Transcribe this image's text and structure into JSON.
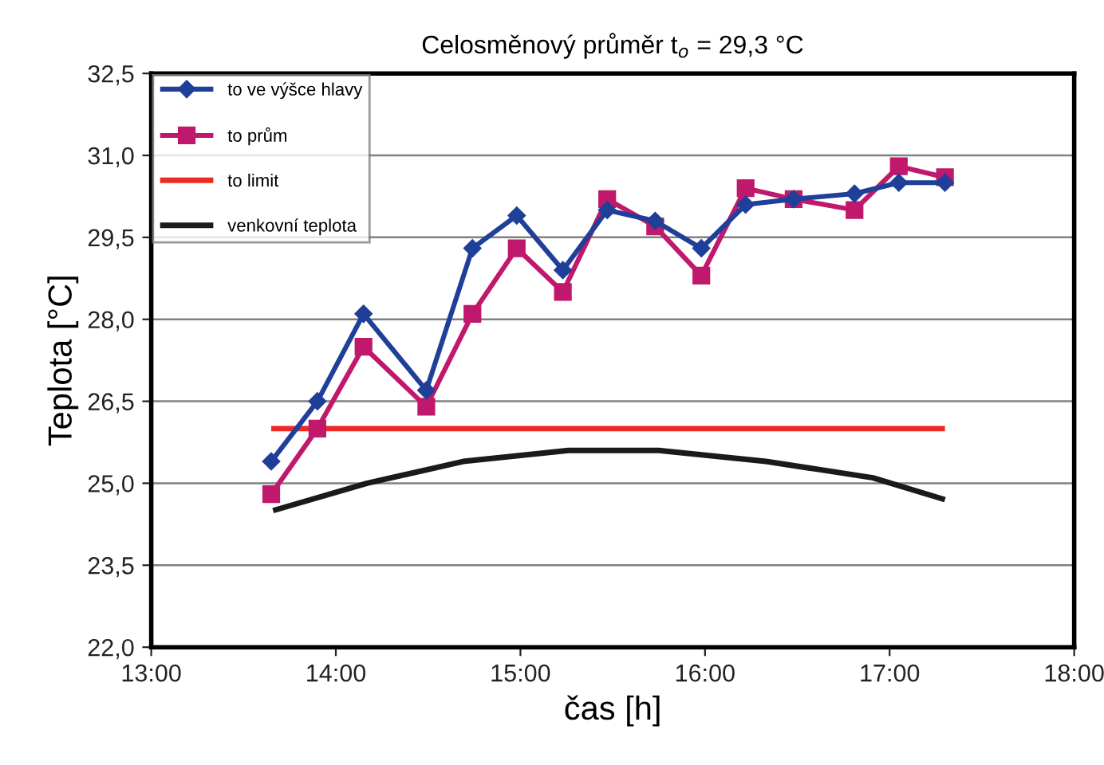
{
  "chart_data": {
    "type": "line",
    "title": "Celosměnový průměr t$_{o}$ = 29,3 °C",
    "xlabel": "čas [h]",
    "ylabel": "Teplota [°C]",
    "xlim": [
      13,
      18
    ],
    "xticks": [
      {
        "value": 13,
        "label": "13:00"
      },
      {
        "value": 14,
        "label": "14:00"
      },
      {
        "value": 15,
        "label": "15:00"
      },
      {
        "value": 16,
        "label": "16:00"
      },
      {
        "value": 17,
        "label": "17:00"
      },
      {
        "value": 18,
        "label": "18:00"
      }
    ],
    "ylim": [
      22,
      32.5
    ],
    "yticks": [
      {
        "value": 22,
        "label": "22,0"
      },
      {
        "value": 23.5,
        "label": "23,5"
      },
      {
        "value": 25,
        "label": "25,0"
      },
      {
        "value": 26.5,
        "label": "26,5"
      },
      {
        "value": 28,
        "label": "28,0"
      },
      {
        "value": 29.5,
        "label": "29,5"
      },
      {
        "value": 31,
        "label": "31,0"
      },
      {
        "value": 32.5,
        "label": "32,5"
      }
    ],
    "grid": "y",
    "legend": "top left",
    "line_style": "solid",
    "series": [
      {
        "name": "to ve výšce hlavy",
        "color": "#1f3f99",
        "marker": "diamond",
        "x": [
          13.65,
          13.9,
          14.15,
          14.49,
          14.74,
          14.98,
          15.23,
          15.47,
          15.73,
          15.98,
          16.22,
          16.48,
          16.81,
          17.05,
          17.3
        ],
        "values": [
          25.4,
          26.5,
          28.1,
          26.7,
          29.3,
          29.9,
          28.9,
          30.0,
          29.8,
          29.3,
          30.1,
          30.2,
          30.3,
          30.5,
          30.5
        ]
      },
      {
        "name": "to prům",
        "color": "#c0186c",
        "marker": "square",
        "x": [
          13.65,
          13.9,
          14.15,
          14.49,
          14.74,
          14.98,
          15.23,
          15.47,
          15.73,
          15.98,
          16.22,
          16.48,
          16.81,
          17.05,
          17.3
        ],
        "values": [
          24.8,
          26.0,
          27.5,
          26.4,
          28.1,
          29.3,
          28.5,
          30.2,
          29.7,
          28.8,
          30.4,
          30.2,
          30.0,
          30.8,
          30.6
        ]
      },
      {
        "name": "to limit",
        "color": "#ee2a24",
        "marker": "none",
        "x": [
          13.65,
          17.3
        ],
        "values": [
          26.0,
          26.0
        ]
      },
      {
        "name": "venkovní teplota",
        "color": "#1a1a1a",
        "marker": "none",
        "x": [
          13.66,
          14.17,
          14.69,
          15.26,
          15.75,
          16.33,
          16.91,
          17.3
        ],
        "values": [
          24.5,
          25.0,
          25.4,
          25.6,
          25.6,
          25.4,
          25.1,
          24.7
        ]
      }
    ]
  }
}
